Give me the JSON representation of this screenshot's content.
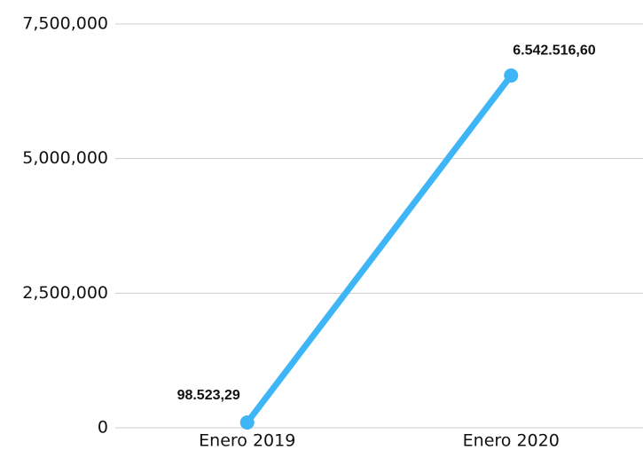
{
  "chart_data": {
    "type": "line",
    "categories": [
      "Enero 2019",
      "Enero 2020"
    ],
    "series": [
      {
        "color": "#3db5f6",
        "values": [
          98523.29,
          6542516.6
        ],
        "value_labels": [
          "98.523,29",
          "6.542.516,60"
        ]
      }
    ],
    "ylim": [
      0,
      7500000
    ],
    "yticks": [
      0,
      {
        "value": 2500000,
        "label": "2,500,000"
      },
      {
        "value": 5000000,
        "label": "5,000,000"
      },
      {
        "value": 7500000,
        "label": "7,500,000"
      }
    ],
    "grid": true
  }
}
